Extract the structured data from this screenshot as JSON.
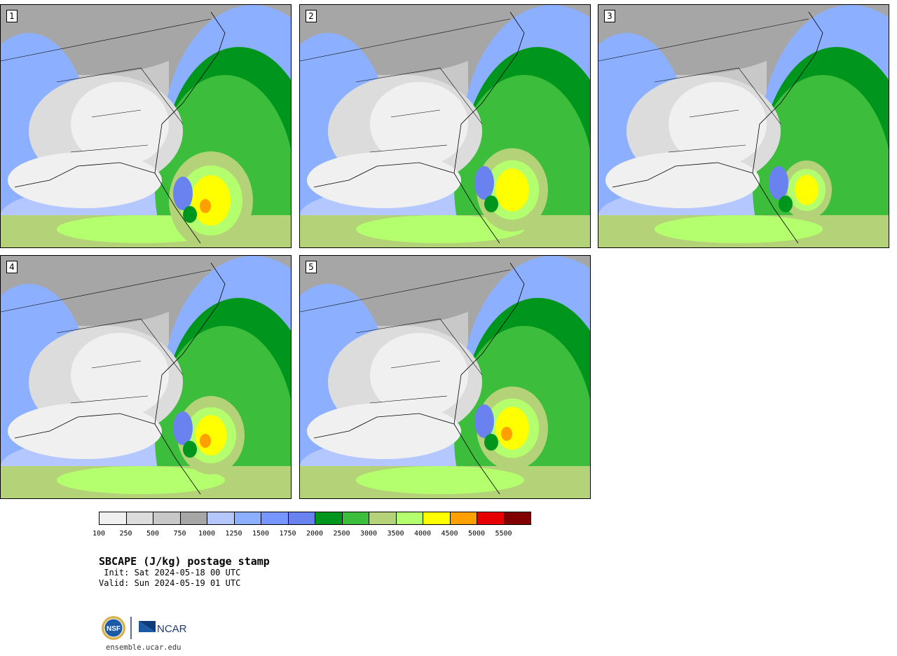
{
  "panels": [
    {
      "label": "1"
    },
    {
      "label": "2"
    },
    {
      "label": "3"
    },
    {
      "label": "4"
    },
    {
      "label": "5"
    }
  ],
  "legend": {
    "ticks": [
      "100",
      "250",
      "500",
      "750",
      "1000",
      "1250",
      "1500",
      "1750",
      "2000",
      "2500",
      "3000",
      "3500",
      "4000",
      "4500",
      "5000",
      "5500"
    ],
    "colors": [
      "#f0f0f0",
      "#dcdcdc",
      "#c8c8c8",
      "#a6a6a6",
      "#b4c8ff",
      "#8cb0ff",
      "#7896ff",
      "#6a82f0",
      "#00961e",
      "#3cbe3c",
      "#b4d278",
      "#b4ff6e",
      "#ffff00",
      "#ffa000",
      "#e60000",
      "#800000"
    ]
  },
  "title": "SBCAPE (J/kg) postage stamp",
  "init": " Init: Sat 2024-05-18 00 UTC",
  "valid": "Valid: Sun 2024-05-19 01 UTC",
  "logo": {
    "nsf": "NSF",
    "ncar": "NCAR"
  },
  "website": "ensemble.ucar.edu"
}
